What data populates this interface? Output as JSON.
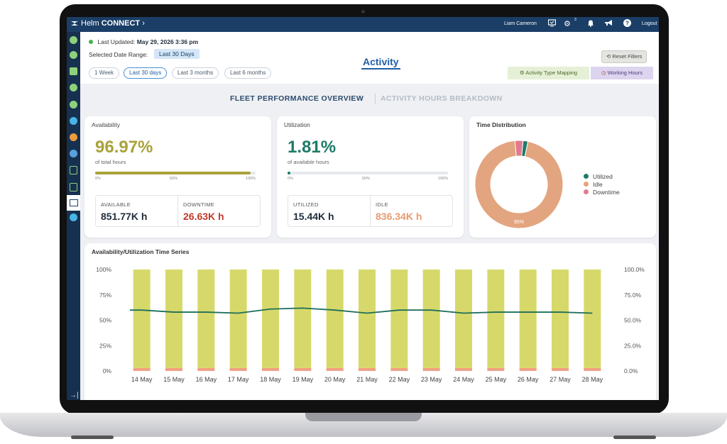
{
  "app": {
    "logo_helm": "Helm",
    "logo_connect": "CONNECT",
    "logo_chevron": "›",
    "user": "Liam Cameron",
    "settings_badge": "3",
    "logout": "Logout"
  },
  "header": {
    "last_updated_label": "Last Updated:",
    "last_updated_value": "May 29, 2026 3:36 pm",
    "date_range_label": "Selected Date Range:",
    "date_range_value": "Last 30 Days",
    "ranges": [
      "1 Week",
      "Last 30 days",
      "Last 3 months",
      "Last 6 months"
    ],
    "active_range": "Last 30 days",
    "title": "Activity",
    "reset_filters": "Reset Filters",
    "activity_type_mapping": "Activity Type Mapping",
    "working_hours": "Working Hours"
  },
  "tabs": {
    "active": "FLEET PERFORMANCE OVERVIEW",
    "inactive": "ACTIVITY HOURS BREAKDOWN"
  },
  "availability": {
    "title": "Availability",
    "value": "96.97%",
    "subtitle": "of total hours",
    "progress": 0.9697,
    "ticks": [
      "0%",
      "50%",
      "100%"
    ],
    "available_label": "AVAILABLE",
    "available_value": "851.77K h",
    "downtime_label": "DOWNTIME",
    "downtime_value": "26.63K h",
    "color": "#a9a23a",
    "downtime_color": "#c0392b"
  },
  "utilization": {
    "title": "Utilization",
    "value": "1.81%",
    "subtitle": "of available hours",
    "progress": 0.0181,
    "ticks": [
      "0%",
      "50%",
      "100%"
    ],
    "utilized_label": "UTILIZED",
    "utilized_value": "15.44K h",
    "idle_label": "IDLE",
    "idle_value": "836.34K h",
    "color": "#1e7a68",
    "idle_color": "#e89a6e"
  },
  "chart_data": [
    {
      "type": "pie",
      "title": "Time Distribution",
      "labels": [
        "Utilized",
        "Idle",
        "Downtime"
      ],
      "values": [
        1.8,
        95.2,
        3.0
      ],
      "colors": [
        "#1e7a68",
        "#e3a57f",
        "#e27a8e"
      ],
      "data_labels": [
        "95%"
      ],
      "legend": "right"
    },
    {
      "type": "bar",
      "title": "Availability/Utilization Time Series",
      "categories": [
        "14 May",
        "15 May",
        "16 May",
        "17 May",
        "18 May",
        "19 May",
        "20 May",
        "21 May",
        "22 May",
        "23 May",
        "24 May",
        "25 May",
        "26 May",
        "27 May",
        "28 May"
      ],
      "series": [
        {
          "values": [
            97,
            97,
            97,
            97,
            97,
            97,
            97,
            97,
            97,
            97,
            97,
            97,
            97,
            97,
            97
          ],
          "color": "#d6d96a"
        },
        {
          "values": [
            3,
            3,
            3,
            3,
            3,
            3,
            3,
            3,
            3,
            3,
            3,
            3,
            3,
            3,
            3
          ],
          "color": "#f0a080"
        },
        {
          "type": "line",
          "values": [
            60,
            58,
            58,
            57,
            61,
            62,
            60,
            57,
            60,
            60,
            57,
            58,
            58,
            58,
            57
          ],
          "color": "#1e6e5a"
        }
      ],
      "left_ticks": [
        "100%",
        "75%",
        "50%",
        "25%",
        "0%"
      ],
      "right_ticks": [
        "100.0%",
        "75.0%",
        "50.0%",
        "25.0%",
        "0.0%"
      ],
      "ylim": [
        0,
        100
      ],
      "grid": false
    }
  ]
}
